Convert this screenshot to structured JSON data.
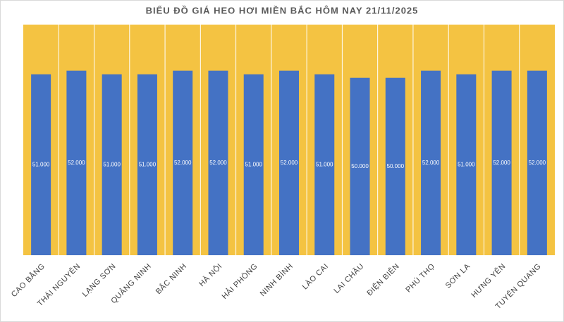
{
  "chart_data": {
    "type": "bar",
    "title": "BIỂU ĐỒ GIÁ HEO HƠI MIỀN BẮC HÔM NAY 21/11/2025",
    "categories": [
      "CAO BẰNG",
      "THÁI NGUYÊN",
      "LẠNG SƠN",
      "QUẢNG NINH",
      "BẮC NINH",
      "HÀ NỘI",
      "HẢI PHÒNG",
      "NINH BÌNH",
      "LÀO CAI",
      "LAI CHÂU",
      "ĐIỆN BIÊN",
      "PHÚ THỌ",
      "SƠN LA",
      "HƯNG YÊN",
      "TUYÊN QUANG"
    ],
    "values": [
      51000,
      52000,
      51000,
      51000,
      52000,
      52000,
      51000,
      52000,
      51000,
      50000,
      50000,
      52000,
      51000,
      52000,
      52000
    ],
    "value_labels": [
      "51.000",
      "52.000",
      "51.000",
      "51.000",
      "52.000",
      "52.000",
      "51.000",
      "52.000",
      "51.000",
      "50.000",
      "50.000",
      "52.000",
      "51.000",
      "52.000",
      "52.000"
    ],
    "color": "#4472c4",
    "background": "#f4c342",
    "ylim": [
      0,
      65000
    ]
  }
}
